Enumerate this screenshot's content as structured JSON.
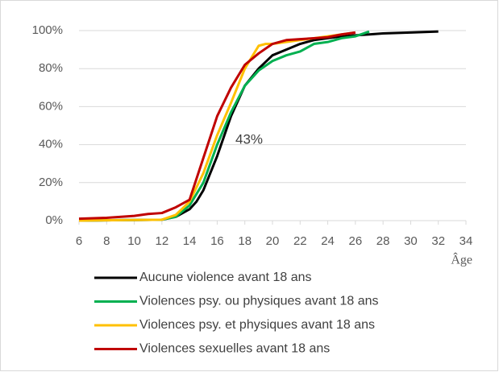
{
  "chart_data": {
    "type": "line",
    "xlabel": "Âge",
    "annotations": [
      {
        "text": "43%"
      }
    ],
    "xlim": [
      6,
      34
    ],
    "xticks": [
      6,
      8,
      10,
      12,
      14,
      16,
      18,
      20,
      22,
      24,
      26,
      28,
      30,
      32,
      34
    ],
    "ylim": [
      0,
      100
    ],
    "yticks": [
      {
        "value": 0,
        "label": "0%"
      },
      {
        "value": 20,
        "label": "20%"
      },
      {
        "value": 40,
        "label": "40%"
      },
      {
        "value": 60,
        "label": "60%"
      },
      {
        "value": 80,
        "label": "80%"
      },
      {
        "value": 100,
        "label": "100%"
      }
    ],
    "grid": true,
    "legend": "bottom",
    "series": [
      {
        "name": "Aucune violence avant 18 ans",
        "color": "#000000",
        "x": [
          6,
          12,
          13,
          14,
          14.5,
          15,
          16,
          17,
          18,
          19,
          20,
          21,
          22,
          23,
          24,
          25,
          26,
          27,
          28,
          30,
          32
        ],
        "values": [
          0,
          0.5,
          2,
          6,
          10,
          16,
          34,
          55,
          71,
          80,
          87,
          90,
          93,
          95,
          96,
          97,
          97.5,
          98,
          98.5,
          99,
          99.5
        ]
      },
      {
        "name": "Violences psy. ou physiques avant 18 ans",
        "color": "#00b050",
        "x": [
          6,
          12,
          13,
          14,
          15,
          16,
          17,
          18,
          19,
          20,
          21,
          22,
          23,
          24,
          25,
          26,
          27
        ],
        "values": [
          0,
          0.5,
          2,
          8,
          20,
          40,
          57,
          71,
          79,
          84,
          87,
          89,
          93,
          94,
          96,
          97,
          99.5
        ]
      },
      {
        "name": "Violences psy. et physiques avant 18 ans",
        "color": "#ffc000",
        "x": [
          6,
          12,
          13,
          14,
          15,
          16,
          17,
          18,
          19,
          19.5,
          20,
          21,
          22,
          23,
          24,
          25,
          26
        ],
        "values": [
          0,
          0.5,
          3,
          10,
          25,
          45,
          62,
          80,
          92,
          93,
          93,
          94,
          95,
          96,
          97,
          98,
          99
        ]
      },
      {
        "name": "Violences sexuelles avant 18 ans",
        "color": "#c00000",
        "x": [
          6,
          8,
          10,
          11,
          12,
          13,
          14,
          15,
          16,
          17,
          18,
          19,
          20,
          21,
          22,
          23,
          24,
          25,
          26
        ],
        "values": [
          1,
          1.5,
          2.5,
          3.5,
          4,
          7,
          11,
          33,
          55,
          70,
          82,
          88,
          93,
          95,
          95.5,
          96,
          96.5,
          98,
          99
        ]
      }
    ]
  }
}
